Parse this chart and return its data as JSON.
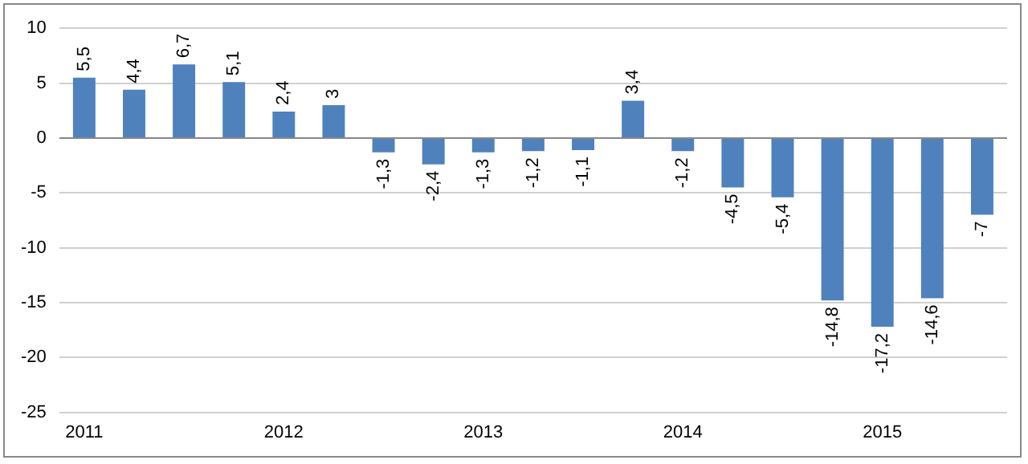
{
  "chart_data": {
    "type": "bar",
    "categories": [
      "2011",
      null,
      null,
      null,
      "2012",
      null,
      null,
      null,
      "2013",
      null,
      null,
      null,
      "2014",
      null,
      null,
      null,
      "2015",
      null,
      null
    ],
    "values": [
      5.5,
      4.4,
      6.7,
      5.1,
      2.4,
      3,
      -1.3,
      -2.4,
      -1.3,
      -1.2,
      -1.1,
      3.4,
      -1.2,
      -4.5,
      -5.4,
      -14.8,
      -17.2,
      -14.6,
      -7
    ],
    "value_labels": [
      "5,5",
      "4,4",
      "6,7",
      "5,1",
      "2,4",
      "3",
      "-1,3",
      "-2,4",
      "-1,3",
      "-1,2",
      "-1,1",
      "3,4",
      "-1,2",
      "-4,5",
      "-5,4",
      "-14,8",
      "-17,2",
      "-14,6",
      "-7"
    ],
    "color": "#4f81bd",
    "ylim": [
      -25,
      10
    ],
    "yticks": [
      -25,
      -20,
      -15,
      -10,
      -5,
      0,
      5,
      10
    ],
    "grid": "y",
    "legend": false
  }
}
